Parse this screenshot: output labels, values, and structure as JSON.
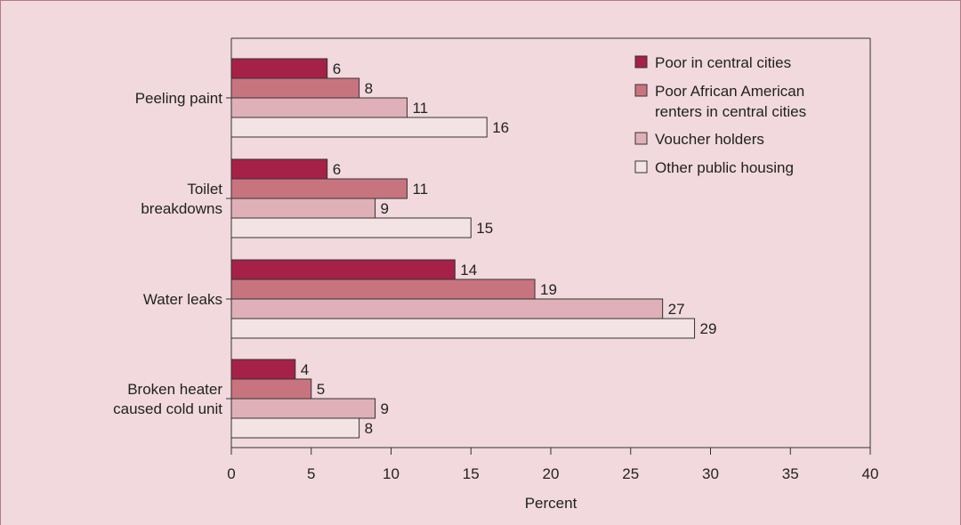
{
  "chart_data": {
    "type": "bar",
    "orientation": "horizontal",
    "categories": [
      [
        "Peeling paint"
      ],
      [
        "Toilet",
        "breakdowns"
      ],
      [
        "Water leaks"
      ],
      [
        "Broken heater",
        "caused cold unit"
      ]
    ],
    "series": [
      {
        "name": "Poor in central cities",
        "legend_lines": [
          "Poor in central cities"
        ],
        "color": "#a52148",
        "values": [
          6,
          6,
          14,
          4
        ]
      },
      {
        "name": "Poor African American renters in central cities",
        "legend_lines": [
          "Poor African American",
          "renters in central cities"
        ],
        "color": "#c8747f",
        "values": [
          8,
          11,
          19,
          5
        ]
      },
      {
        "name": "Voucher holders",
        "legend_lines": [
          "Voucher holders"
        ],
        "color": "#dfb0b7",
        "values": [
          11,
          9,
          27,
          9
        ]
      },
      {
        "name": "Other public housing",
        "legend_lines": [
          "Other public housing"
        ],
        "color": "#f3e3e5",
        "values": [
          16,
          15,
          29,
          8
        ]
      }
    ],
    "xlabel": "Percent",
    "ylabel": "",
    "xlim": [
      0,
      40
    ],
    "xticks": [
      0,
      5,
      10,
      15,
      20,
      25,
      30,
      35,
      40
    ],
    "grid": false,
    "legend_position": "top-right",
    "colors": {
      "background": "#f1d9dd",
      "plot_background": "#f1d9dd",
      "axis": "#333333",
      "bar_outline": "#333333"
    }
  }
}
